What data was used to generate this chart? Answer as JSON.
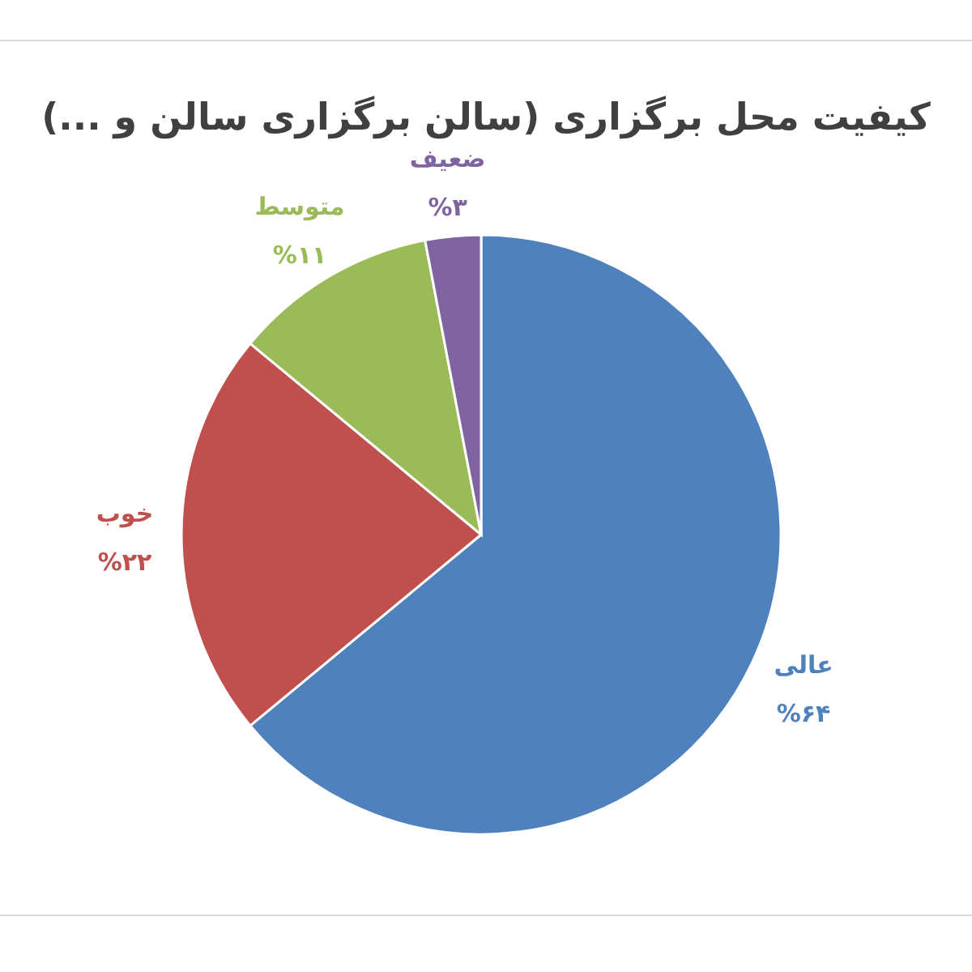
{
  "chart_data": {
    "type": "pie",
    "title": "کیفیت محل برگزاری (سالن برگزاری سالن و ...)",
    "categories": [
      "عالی",
      "خوب",
      "متوسط",
      "ضعیف"
    ],
    "values": [
      64,
      22,
      11,
      3
    ],
    "colors": [
      "#4f81bd",
      "#c0504d",
      "#9bbb59",
      "#8064a2"
    ],
    "value_labels": [
      "%۶۴",
      "%۲۲",
      "%۱۱",
      "%۳"
    ]
  }
}
